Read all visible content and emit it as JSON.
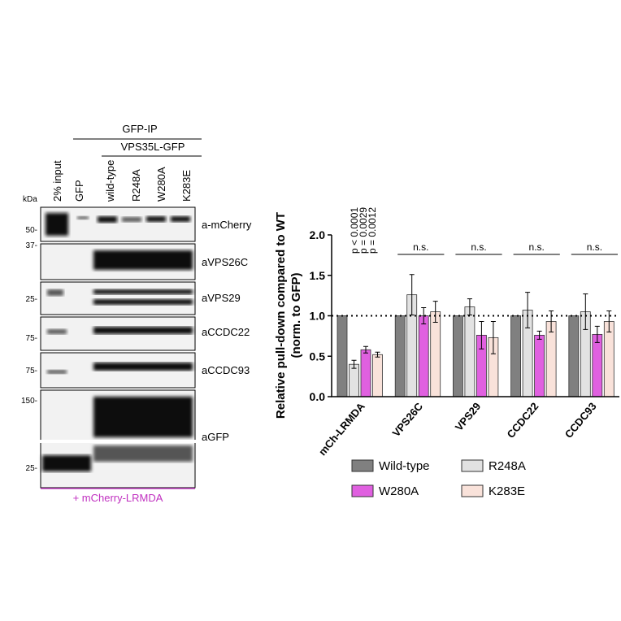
{
  "blot": {
    "header": "GFP-IP",
    "subheader": "VPS35L-GFP",
    "kda": "kDa",
    "lanes": [
      "2% input",
      "GFP",
      "wild-type",
      "R248A",
      "W280A",
      "K283E"
    ],
    "markers": [
      "50-",
      "37-",
      "25-",
      "75-",
      "75-",
      "150-",
      "25-"
    ],
    "antibodies": [
      "a-mCherry",
      "aVPS26C",
      "aVPS29",
      "aCCDC22",
      "aCCDC93",
      "aGFP"
    ],
    "footer": "+ mCherry-LRMDA"
  },
  "chart_data": {
    "type": "bar",
    "y_label": [
      "Relative pull-down compared to WT",
      "(norm. to GFP)"
    ],
    "categories": [
      "mCh-LRMDA",
      "VPS26C",
      "VPS29",
      "CCDC22",
      "CCDC93"
    ],
    "series": [
      {
        "name": "Wild-type",
        "color": "#808080",
        "values": [
          1,
          1,
          1,
          1,
          1
        ]
      },
      {
        "name": "R248A",
        "color": "#e2e2e2",
        "values": [
          0.4,
          1.26,
          1.11,
          1.07,
          1.05
        ],
        "errors": [
          0.05,
          0.25,
          0.1,
          0.22,
          0.22
        ]
      },
      {
        "name": "W280A",
        "color": "#e060e0",
        "values": [
          0.58,
          1.0,
          0.76,
          0.76,
          0.77
        ],
        "errors": [
          0.04,
          0.1,
          0.17,
          0.05,
          0.1
        ]
      },
      {
        "name": "K283E",
        "color": "#f9e2da",
        "values": [
          0.52,
          1.05,
          0.73,
          0.93,
          0.93
        ],
        "errors": [
          0.03,
          0.13,
          0.2,
          0.13,
          0.13
        ]
      }
    ],
    "ylim": [
      0,
      2
    ],
    "yticks": [
      {
        "value": 0,
        "label": "0.0"
      },
      {
        "value": 0.5,
        "label": "0.5"
      },
      {
        "value": 1,
        "label": "1.0"
      },
      {
        "value": 1.5,
        "label": "1.5"
      },
      {
        "value": 2,
        "label": "2.0"
      }
    ],
    "reference_line": 1,
    "p_values": [
      "p < 0.0001",
      "p = 0.0029",
      "p = 0.0012"
    ],
    "significance": [
      null,
      "n.s.",
      "n.s.",
      "n.s.",
      "n.s."
    ]
  }
}
